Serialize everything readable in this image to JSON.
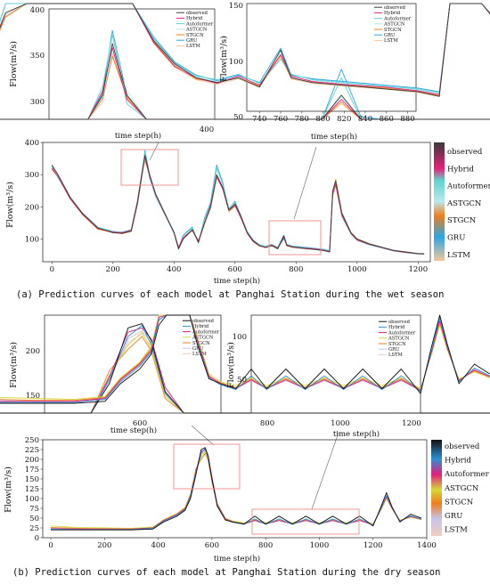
{
  "colors": {
    "observed": "#3a3a3a",
    "hybrid_wet": "#e8207a",
    "autoformer_wet": "#5fd3d0",
    "astgcn_wet": "#b9e8ec",
    "stgcn": "#f07d1a",
    "gru_wet": "#2aa6e6",
    "lstm_wet": "#f7c79a",
    "hybrid_dry": "#2e8fd6",
    "autoformer_dry": "#e21d7b",
    "astgcn_dry": "#d6d938",
    "gru_dry": "#c7c3ec",
    "lstm_dry": "#f1cdbf",
    "zoom_box": "#f08a8a"
  },
  "panel_a": {
    "caption": "(a) Prediction curves of each model at Panghai Station during the wet season",
    "main": {
      "ylabel": "Flow(m³/s)",
      "xlabel": "time step(h)",
      "xticks": [
        "0",
        "200",
        "400",
        "600",
        "800",
        "1000",
        "1200"
      ],
      "yticks": [
        "100",
        "200",
        "300",
        "400"
      ]
    },
    "inset_left": {
      "xlabel": "time step(h)",
      "xticks": [
        "400"
      ],
      "yticks": [
        "300",
        "350",
        "400"
      ],
      "ylabel": "Flow(m³/s)"
    },
    "inset_right": {
      "xlabel": "time step(h)",
      "xticks": [
        "740",
        "760",
        "780",
        "800",
        "820",
        "840",
        "860",
        "880"
      ],
      "yticks": [
        "50",
        "100",
        "150"
      ],
      "ylabel": "Flow(m³/s)"
    },
    "legend": [
      "observed",
      "Hybrid",
      "Autoformer",
      "ASTGCN",
      "STGCN",
      "GRU",
      "LSTM"
    ]
  },
  "panel_b": {
    "caption": "(b) Prediction curves of each model at Panghai Station during the dry season",
    "main": {
      "ylabel": "Flow(m³/s)",
      "xlabel": "time step(h)",
      "xticks": [
        "0",
        "200",
        "400",
        "600",
        "800",
        "1000",
        "1200",
        "1400"
      ],
      "yticks": [
        "0",
        "25",
        "50",
        "75",
        "100",
        "125",
        "150",
        "175",
        "200",
        "225",
        "250"
      ]
    },
    "inset_left": {
      "xlabel": "time step(h)",
      "xticks": [
        "600"
      ],
      "yticks": [
        "150",
        "200"
      ],
      "ylabel": "Flow(m³/s)"
    },
    "inset_right": {
      "xlabel": "time step(h)",
      "xticks": [
        "800",
        "1000",
        "1200"
      ],
      "yticks": [
        "50",
        "100"
      ],
      "ylabel": "Flow(m³/s)"
    },
    "legend": [
      "observed",
      "Hybrid",
      "Autoformer",
      "ASTGCN",
      "STGCN",
      "GRU",
      "LSTM"
    ]
  },
  "chart_data": [
    {
      "type": "line",
      "title": "",
      "xlabel": "time step(h)",
      "ylabel": "Flow(m³/s)",
      "xlim": [
        -30,
        1240
      ],
      "ylim": [
        30,
        400
      ],
      "x": [
        0,
        20,
        60,
        100,
        150,
        200,
        230,
        260,
        280,
        295,
        305,
        320,
        340,
        370,
        400,
        415,
        430,
        460,
        480,
        500,
        520,
        540,
        560,
        580,
        600,
        620,
        640,
        660,
        680,
        700,
        720,
        740,
        760,
        770,
        790,
        820,
        860,
        890,
        910,
        920,
        930,
        950,
        980,
        1000,
        1040,
        1080,
        1120,
        1160,
        1200,
        1220
      ],
      "series": [
        {
          "name": "observed",
          "values": [
            330,
            300,
            230,
            180,
            135,
            120,
            118,
            125,
            210,
            300,
            360,
            300,
            240,
            180,
            120,
            70,
            100,
            130,
            90,
            150,
            200,
            300,
            260,
            190,
            210,
            170,
            120,
            95,
            80,
            75,
            80,
            70,
            110,
            80,
            75,
            72,
            68,
            65,
            60,
            250,
            280,
            180,
            120,
            100,
            85,
            75,
            65,
            60,
            55,
            55
          ]
        },
        {
          "name": "Hybrid",
          "values": [
            320,
            295,
            225,
            178,
            133,
            122,
            120,
            128,
            215,
            305,
            355,
            295,
            238,
            178,
            122,
            75,
            105,
            128,
            95,
            150,
            205,
            295,
            255,
            190,
            205,
            165,
            118,
            92,
            80,
            74,
            82,
            72,
            105,
            82,
            76,
            73,
            70,
            66,
            62,
            240,
            270,
            175,
            118,
            98,
            84,
            74,
            64,
            59,
            55,
            54
          ]
        },
        {
          "name": "Autoformer",
          "values": [
            325,
            290,
            228,
            182,
            138,
            124,
            121,
            130,
            220,
            310,
            370,
            290,
            232,
            176,
            118,
            68,
            110,
            135,
            92,
            160,
            210,
            320,
            270,
            195,
            215,
            172,
            122,
            96,
            82,
            78,
            84,
            74,
            100,
            84,
            78,
            75,
            71,
            68,
            64,
            235,
            275,
            170,
            116,
            96,
            82,
            73,
            63,
            58,
            54,
            53
          ]
        },
        {
          "name": "ASTGCN",
          "values": [
            322,
            298,
            232,
            180,
            136,
            126,
            119,
            127,
            212,
            298,
            350,
            305,
            242,
            182,
            124,
            72,
            104,
            130,
            96,
            148,
            198,
            298,
            262,
            188,
            208,
            168,
            121,
            94,
            81,
            76,
            81,
            73,
            108,
            81,
            77,
            74,
            70,
            67,
            63,
            238,
            268,
            178,
            121,
            99,
            86,
            76,
            66,
            60,
            56,
            55
          ]
        },
        {
          "name": "STGCN",
          "values": [
            318,
            293,
            226,
            176,
            131,
            121,
            117,
            124,
            208,
            296,
            345,
            298,
            236,
            179,
            121,
            73,
            102,
            127,
            93,
            146,
            196,
            292,
            258,
            186,
            204,
            166,
            119,
            93,
            79,
            75,
            80,
            71,
            104,
            80,
            75,
            72,
            69,
            65,
            61,
            245,
            285,
            182,
            122,
            101,
            87,
            76,
            66,
            61,
            56,
            55
          ]
        },
        {
          "name": "GRU",
          "values": [
            328,
            296,
            229,
            179,
            134,
            123,
            122,
            129,
            216,
            302,
            375,
            300,
            239,
            180,
            123,
            70,
            112,
            138,
            88,
            165,
            215,
            330,
            275,
            192,
            218,
            170,
            124,
            97,
            83,
            77,
            83,
            75,
            112,
            83,
            79,
            76,
            72,
            69,
            65,
            242,
            278,
            176,
            119,
            97,
            83,
            74,
            64,
            59,
            55,
            54
          ]
        },
        {
          "name": "LSTM",
          "values": [
            315,
            292,
            224,
            177,
            132,
            120,
            118,
            126,
            206,
            292,
            348,
            296,
            234,
            177,
            120,
            74,
            101,
            126,
            94,
            145,
            194,
            290,
            256,
            185,
            202,
            164,
            117,
            91,
            78,
            73,
            79,
            70,
            102,
            79,
            74,
            71,
            68,
            64,
            60,
            230,
            265,
            172,
            117,
            96,
            83,
            74,
            64,
            58,
            54,
            53
          ]
        }
      ]
    },
    {
      "type": "line",
      "title": "",
      "xlabel": "time step(h)",
      "ylabel": "Flow(m³/s)",
      "xlim": [
        -30,
        1400
      ],
      "ylim": [
        0,
        250
      ],
      "x": [
        0,
        100,
        200,
        300,
        380,
        420,
        470,
        500,
        520,
        540,
        560,
        575,
        585,
        600,
        620,
        650,
        680,
        720,
        760,
        800,
        850,
        900,
        950,
        1000,
        1050,
        1100,
        1150,
        1200,
        1230,
        1250,
        1270,
        1300,
        1340,
        1380
      ],
      "series": [
        {
          "name": "observed",
          "values": [
            20,
            20,
            20,
            20,
            22,
            40,
            55,
            70,
            100,
            160,
            225,
            230,
            210,
            150,
            80,
            45,
            40,
            35,
            55,
            35,
            55,
            35,
            55,
            35,
            55,
            35,
            55,
            30,
            80,
            115,
            80,
            40,
            60,
            50
          ]
        },
        {
          "name": "Hybrid",
          "values": [
            22,
            21,
            21,
            21,
            24,
            42,
            58,
            72,
            105,
            165,
            215,
            228,
            205,
            148,
            82,
            46,
            39,
            34,
            48,
            34,
            48,
            34,
            48,
            34,
            48,
            34,
            48,
            32,
            76,
            108,
            78,
            42,
            56,
            48
          ]
        },
        {
          "name": "Autoformer",
          "values": [
            23,
            22,
            22,
            22,
            25,
            44,
            60,
            74,
            108,
            168,
            220,
            225,
            212,
            155,
            85,
            48,
            40,
            35,
            44,
            35,
            44,
            35,
            44,
            35,
            44,
            35,
            44,
            33,
            74,
            104,
            76,
            43,
            54,
            47
          ]
        },
        {
          "name": "ASTGCN",
          "values": [
            30,
            26,
            25,
            24,
            27,
            46,
            62,
            78,
            112,
            170,
            205,
            220,
            200,
            145,
            88,
            50,
            42,
            38,
            46,
            38,
            46,
            38,
            46,
            38,
            46,
            38,
            46,
            35,
            72,
            100,
            74,
            45,
            52,
            46
          ]
        },
        {
          "name": "STGCN",
          "values": [
            26,
            24,
            23,
            23,
            26,
            45,
            61,
            76,
            110,
            175,
            200,
            215,
            198,
            142,
            84,
            47,
            41,
            36,
            45,
            36,
            45,
            36,
            45,
            36,
            45,
            36,
            45,
            34,
            73,
            102,
            75,
            44,
            53,
            47
          ]
        },
        {
          "name": "GRU",
          "values": [
            24,
            23,
            22,
            22,
            25,
            43,
            59,
            73,
            106,
            163,
            212,
            222,
            207,
            150,
            83,
            47,
            40,
            35,
            43,
            35,
            43,
            35,
            43,
            35,
            43,
            35,
            43,
            33,
            75,
            106,
            77,
            42,
            55,
            48
          ]
        },
        {
          "name": "LSTM",
          "values": [
            25,
            24,
            23,
            23,
            26,
            44,
            60,
            75,
            107,
            166,
            208,
            218,
            203,
            147,
            84,
            48,
            41,
            36,
            44,
            36,
            44,
            36,
            44,
            36,
            44,
            36,
            44,
            34,
            74,
            103,
            76,
            43,
            54,
            47
          ]
        }
      ]
    }
  ]
}
